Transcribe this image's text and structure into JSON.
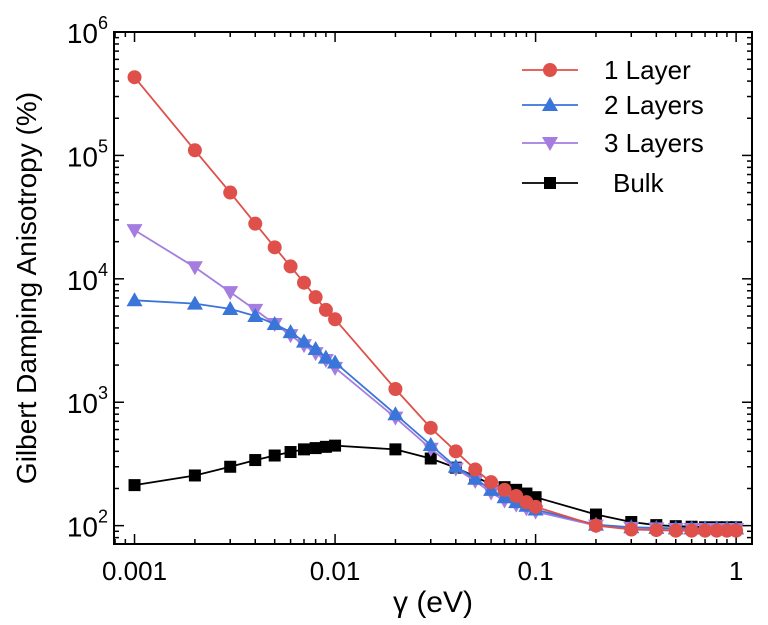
{
  "chart_data": {
    "type": "line",
    "title": "",
    "xlabel": "γ (eV)",
    "ylabel": "Gilbert Damping Anisotropy (%)",
    "xscale": "log",
    "yscale": "log",
    "xlim": [
      0.00079,
      1.2
    ],
    "ylim": [
      71,
      1000000
    ],
    "x_ticks": [
      {
        "value": 0.001,
        "label": "0.001"
      },
      {
        "value": 0.01,
        "label": "0.01"
      },
      {
        "value": 0.1,
        "label": "0.1"
      },
      {
        "value": 1,
        "label": "1"
      }
    ],
    "y_ticks": [
      {
        "value": 100,
        "base": "10",
        "exp": "2"
      },
      {
        "value": 1000,
        "base": "10",
        "exp": "3"
      },
      {
        "value": 10000,
        "base": "10",
        "exp": "4"
      },
      {
        "value": 100000,
        "base": "10",
        "exp": "5"
      },
      {
        "value": 1000000,
        "base": "10",
        "exp": "6"
      }
    ],
    "grid": false,
    "legend_position": "top-right",
    "x": [
      0.001,
      0.002,
      0.003,
      0.004,
      0.005,
      0.006,
      0.007,
      0.008,
      0.009,
      0.01,
      0.02,
      0.03,
      0.04,
      0.05,
      0.06,
      0.07,
      0.08,
      0.09,
      0.1,
      0.2,
      0.3,
      0.4,
      0.5,
      0.6,
      0.7,
      0.8,
      0.9,
      1
    ],
    "series": [
      {
        "name": "Bulk",
        "color": "#000000",
        "marker": "square",
        "values": [
          213,
          255,
          300,
          340,
          370,
          395,
          415,
          425,
          435,
          445,
          415,
          350,
          295,
          250,
          215,
          205,
          195,
          182,
          170,
          123,
          107,
          101,
          99,
          98,
          97,
          97,
          97,
          97
        ]
      },
      {
        "name": "3 Layers",
        "color": "#a57de0",
        "marker": "triangle-down",
        "values": [
          24800,
          12400,
          7800,
          5600,
          4300,
          3500,
          2900,
          2500,
          2200,
          1900,
          750,
          420,
          290,
          230,
          185,
          160,
          148,
          138,
          130,
          100,
          96,
          95,
          94,
          94,
          94,
          94,
          94,
          94
        ]
      },
      {
        "name": "2 Layers",
        "color": "#3a75d9",
        "marker": "triangle-up",
        "values": [
          6700,
          6300,
          5700,
          5000,
          4300,
          3700,
          3100,
          2700,
          2300,
          2100,
          800,
          450,
          300,
          240,
          195,
          170,
          155,
          145,
          135,
          102,
          97,
          96,
          95,
          95,
          95,
          95,
          95,
          95
        ]
      },
      {
        "name": "1 Layer",
        "color": "#e0504a",
        "marker": "circle",
        "values": [
          430000,
          110000,
          50000,
          28000,
          18000,
          12600,
          9300,
          7100,
          5600,
          4700,
          1280,
          620,
          400,
          285,
          225,
          195,
          174,
          155,
          142,
          100,
          93,
          92,
          91,
          91,
          91,
          91,
          91,
          91
        ]
      }
    ],
    "legend_order": [
      "1 Layer",
      "2 Layers",
      "3 Layers",
      "Bulk"
    ]
  }
}
